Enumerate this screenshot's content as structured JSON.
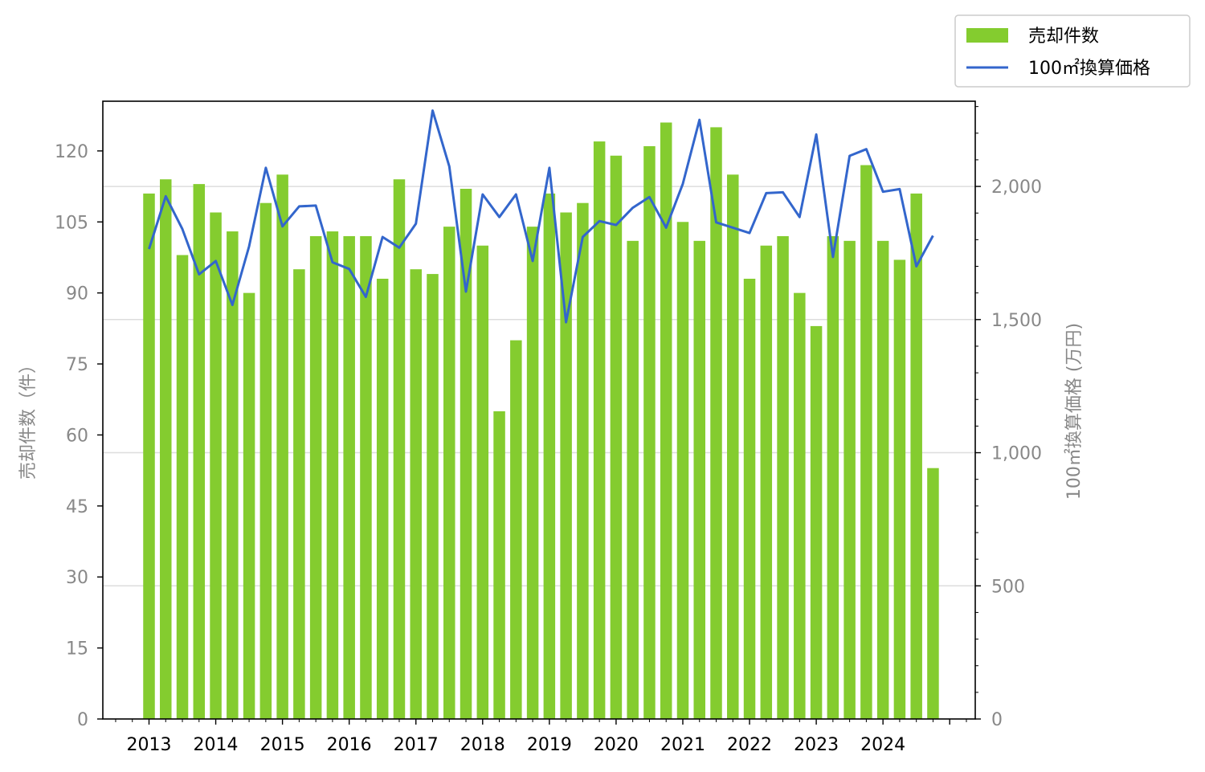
{
  "chart_data": {
    "type": "bar",
    "title": "",
    "x_tick_labels": [
      "2013",
      "2014",
      "2015",
      "2016",
      "2017",
      "2018",
      "2019",
      "2020",
      "2021",
      "2022",
      "2023",
      "2024"
    ],
    "series": [
      {
        "name": "売却件数",
        "type": "bar",
        "axis": "left",
        "color": "#84cc2f",
        "values": [
          111,
          114,
          98,
          113,
          107,
          103,
          90,
          109,
          115,
          95,
          102,
          103,
          102,
          102,
          93,
          114,
          95,
          94,
          104,
          112,
          100,
          65,
          80,
          104,
          111,
          107,
          109,
          122,
          119,
          101,
          121,
          126,
          105,
          101,
          125,
          115,
          93,
          100,
          102,
          90,
          83,
          102,
          101,
          117,
          101,
          97,
          111,
          53
        ]
      },
      {
        "name": "100㎡換算価格",
        "type": "line",
        "axis": "right",
        "color": "#3366cc",
        "values": [
          1765,
          1963,
          1840,
          1670,
          1720,
          1555,
          1775,
          2070,
          1850,
          1925,
          1928,
          1715,
          1690,
          1585,
          1810,
          1770,
          1860,
          2285,
          2075,
          1605,
          1970,
          1885,
          1970,
          1720,
          2070,
          1490,
          1810,
          1870,
          1855,
          1920,
          1960,
          1845,
          2010,
          2250,
          1865,
          1845,
          1825,
          1975,
          1978,
          1885,
          2195,
          1735,
          2115,
          2140,
          1980,
          1990,
          1700,
          1815
        ]
      }
    ],
    "left_axis": {
      "label": "売却件数（件）",
      "ticks": [
        0,
        15,
        30,
        45,
        60,
        75,
        90,
        105,
        120
      ],
      "ylim": [
        0,
        130.5
      ]
    },
    "right_axis": {
      "label": "100㎡換算価格 (万円)",
      "ticks": [
        "0",
        "500",
        "1,000",
        "1,500",
        "2,000"
      ],
      "ylim": [
        0,
        2320
      ]
    },
    "grid": "horizontal (right axis)",
    "legend_position": "top-right, outside plot"
  }
}
